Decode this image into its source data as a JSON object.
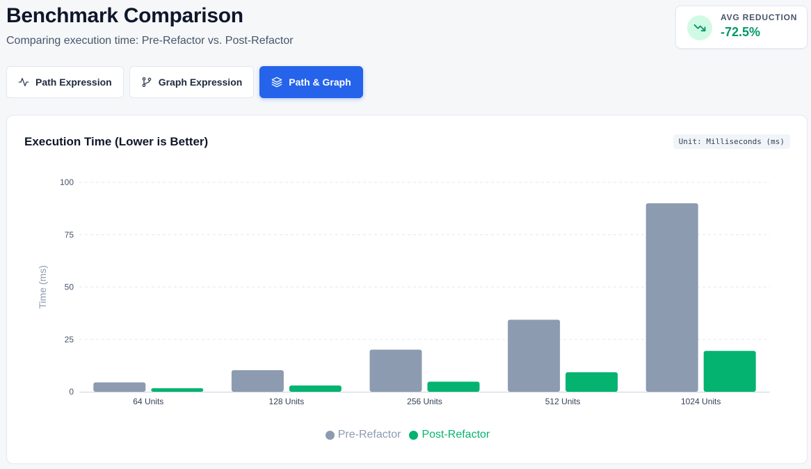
{
  "header": {
    "title": "Benchmark Comparison",
    "subtitle": "Comparing execution time: Pre-Refactor vs. Post-Refactor"
  },
  "stat": {
    "label": "AVG REDUCTION",
    "value": "-72.5%",
    "icon": "trending-down-icon"
  },
  "tabs": [
    {
      "label": "Path Expression",
      "icon": "activity-icon",
      "active": false
    },
    {
      "label": "Graph Expression",
      "icon": "git-branch-icon",
      "active": false
    },
    {
      "label": "Path & Graph",
      "icon": "layers-icon",
      "active": true
    }
  ],
  "chart_card": {
    "title": "Execution Time (Lower is Better)",
    "unit_badge": "Unit: Milliseconds (ms)"
  },
  "colors": {
    "accent": "#2563eb",
    "pre": "#8c9bb0",
    "post": "#05b370",
    "positive": "#059669"
  },
  "chart_data": {
    "type": "bar",
    "categories": [
      "64 Units",
      "128 Units",
      "256 Units",
      "512 Units",
      "1024 Units"
    ],
    "series": [
      {
        "name": "Pre-Refactor",
        "values": [
          4.5,
          10.3,
          20.1,
          34.4,
          90.0
        ]
      },
      {
        "name": "Post-Refactor",
        "values": [
          1.7,
          3.0,
          4.8,
          9.3,
          19.5
        ]
      }
    ],
    "ylabel": "Time (ms)",
    "ylim": [
      0,
      100
    ],
    "yticks": [
      0,
      25,
      50,
      75,
      100
    ],
    "grid": true,
    "legend_position": "bottom"
  }
}
